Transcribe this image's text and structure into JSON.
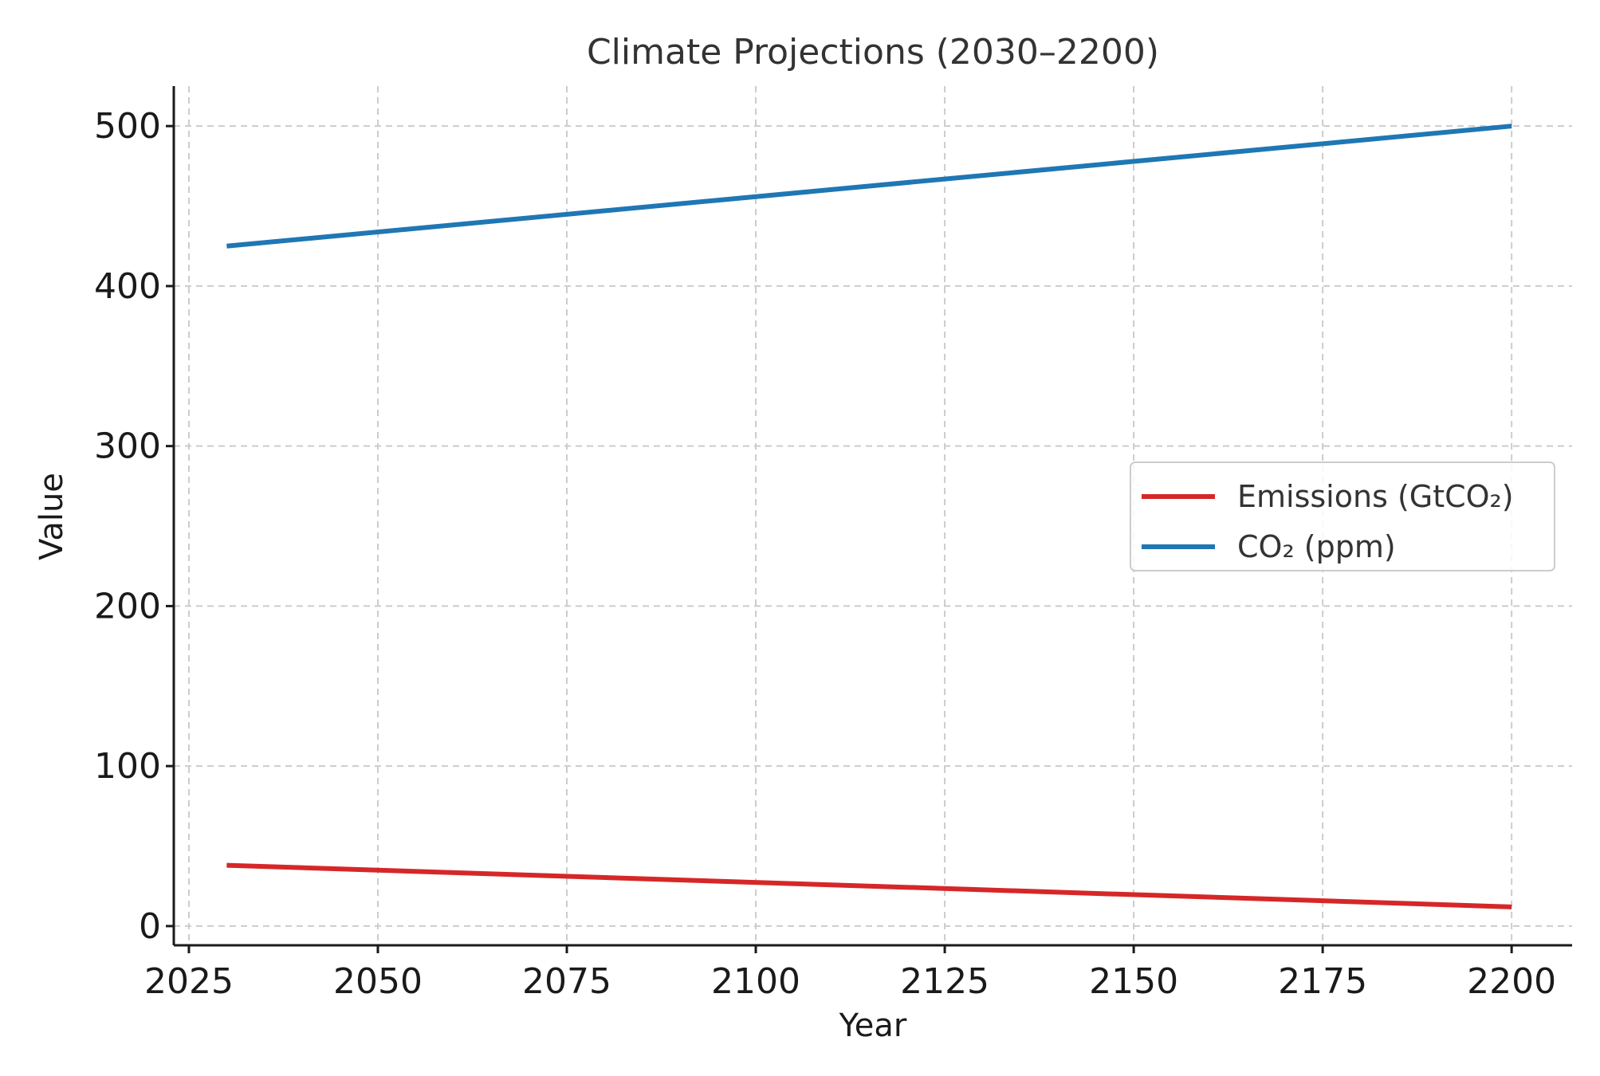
{
  "chart_data": {
    "type": "line",
    "title": "Climate Projections (2030–2200)",
    "xlabel": "Year",
    "ylabel": "Value",
    "xlim": [
      2023,
      2208
    ],
    "ylim": [
      -12,
      525
    ],
    "x_ticks": [
      2025,
      2050,
      2075,
      2100,
      2125,
      2150,
      2175,
      2200
    ],
    "y_ticks": [
      0,
      100,
      200,
      300,
      400,
      500
    ],
    "grid": true,
    "legend_position": "center-right",
    "series": [
      {
        "name": "Emissions (GtCO₂)",
        "color": "#d62728",
        "x": [
          2030,
          2200
        ],
        "y": [
          38,
          12
        ]
      },
      {
        "name": "CO₂ (ppm)",
        "color": "#1f77b4",
        "x": [
          2030,
          2200
        ],
        "y": [
          425,
          500
        ]
      }
    ]
  }
}
